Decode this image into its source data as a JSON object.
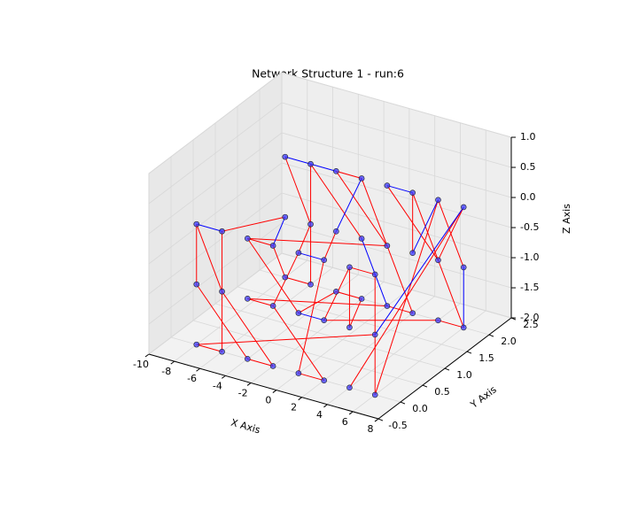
{
  "chart_data": {
    "type": "network3d",
    "title": "Network Structure 1 - run:6",
    "x_label": "X Axis",
    "y_label": "Y Axis",
    "z_label": "Z Axis",
    "xlim": [
      -10,
      8
    ],
    "ylim": [
      -0.5,
      2.5
    ],
    "zlim": [
      -2,
      1
    ],
    "xticks": [
      -10,
      -8,
      -6,
      -4,
      -2,
      0,
      2,
      4,
      6,
      8
    ],
    "yticks": [
      {
        "value": -0.5,
        "label": "-0.5"
      },
      {
        "value": 0,
        "label": "0.0"
      },
      {
        "value": 0.5,
        "label": "0.5"
      },
      {
        "value": 1,
        "label": "1.0"
      },
      {
        "value": 1.5,
        "label": "1.5"
      },
      {
        "value": 2,
        "label": "2.0"
      },
      {
        "value": 2.5,
        "label": "2.5"
      }
    ],
    "zticks": [
      {
        "value": -2,
        "label": "-2.0"
      },
      {
        "value": -1.5,
        "label": "-1.5"
      },
      {
        "value": -1,
        "label": "-1.0"
      },
      {
        "value": -0.5,
        "label": "-0.5"
      },
      {
        "value": 0,
        "label": "0.0"
      },
      {
        "value": 0.5,
        "label": "0.5"
      },
      {
        "value": 1,
        "label": "1.0"
      }
    ],
    "grid": true,
    "node_color": "#3a3aff",
    "nodes": {
      "x": [
        -8,
        -6,
        -4,
        -2,
        0,
        2,
        4,
        6,
        -8,
        -6,
        -4,
        -2,
        0,
        2,
        4,
        6,
        -8,
        -6,
        -4,
        -2,
        0,
        2,
        4,
        6,
        -8,
        -6,
        -4,
        -2,
        0,
        2,
        4,
        6,
        -8,
        -6,
        -4,
        -2,
        0,
        2,
        4,
        6,
        -8,
        -6,
        -4,
        -2,
        0,
        2,
        4,
        6
      ],
      "y": [
        0,
        0,
        0,
        0,
        0,
        0,
        0,
        0,
        2,
        2,
        2,
        2,
        2,
        2,
        2,
        2,
        0,
        0,
        0,
        0,
        0,
        0,
        0,
        0,
        2,
        2,
        2,
        2,
        2,
        2,
        2,
        2,
        0,
        0,
        0,
        0,
        0,
        0,
        0,
        0,
        2,
        2,
        2,
        2,
        2,
        2,
        2,
        2
      ],
      "z": [
        0,
        0,
        0,
        0,
        0,
        0,
        0,
        0,
        0,
        0,
        0,
        0,
        0,
        0,
        0,
        0,
        -1,
        -1,
        -1,
        -1,
        -1,
        -1,
        -1,
        -1,
        -1,
        -1,
        -1,
        -1,
        -1,
        -1,
        -1,
        -1,
        -2,
        -2,
        -2,
        -2,
        -2,
        -2,
        -2,
        -2,
        -2,
        -2,
        -2,
        -2,
        -2,
        -2,
        -2,
        -2
      ]
    },
    "edge_groups": [
      {
        "color": "#ff0000",
        "edges": [
          [
            0,
            17
          ],
          [
            1,
            33
          ],
          [
            2,
            20
          ],
          [
            3,
            40
          ],
          [
            4,
            19
          ],
          [
            5,
            36
          ],
          [
            6,
            22
          ],
          [
            7,
            39
          ],
          [
            8,
            25
          ],
          [
            9,
            41
          ],
          [
            10,
            28
          ],
          [
            11,
            45
          ],
          [
            12,
            30
          ],
          [
            13,
            47
          ],
          [
            14,
            31
          ],
          [
            15,
            38
          ],
          [
            16,
            34
          ],
          [
            17,
            35
          ],
          [
            18,
            44
          ],
          [
            19,
            37
          ],
          [
            20,
            42
          ],
          [
            21,
            46
          ],
          [
            22,
            43
          ],
          [
            23,
            32
          ],
          [
            24,
            1
          ],
          [
            26,
            5
          ],
          [
            27,
            9
          ],
          [
            29,
            13
          ],
          [
            32,
            33
          ],
          [
            34,
            35
          ],
          [
            36,
            37
          ],
          [
            40,
            41
          ],
          [
            42,
            43
          ],
          [
            44,
            45
          ],
          [
            2,
            3
          ],
          [
            10,
            11
          ],
          [
            6,
            7
          ],
          [
            18,
            19
          ],
          [
            0,
            16
          ],
          [
            25,
            4
          ],
          [
            30,
            15
          ],
          [
            46,
            47
          ],
          [
            39,
            14
          ],
          [
            28,
            2
          ],
          [
            21,
            6
          ]
        ]
      },
      {
        "color": "#0000ff",
        "edges": [
          [
            8,
            9
          ],
          [
            9,
            10
          ],
          [
            12,
            13
          ],
          [
            0,
            1
          ],
          [
            3,
            24
          ],
          [
            27,
            44
          ],
          [
            14,
            29
          ],
          [
            15,
            23
          ],
          [
            20,
            21
          ],
          [
            31,
            47
          ],
          [
            11,
            26
          ],
          [
            4,
            5
          ]
        ]
      }
    ]
  }
}
